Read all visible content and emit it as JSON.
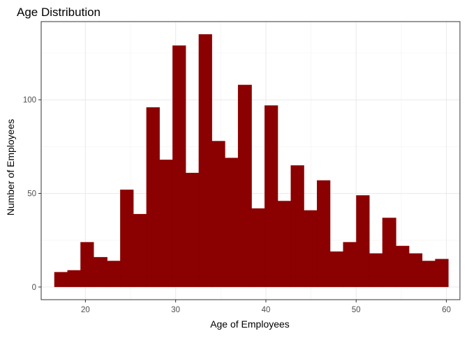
{
  "chart_data": {
    "type": "bar",
    "title": "Age Distribution",
    "xlabel": "Age of Employees",
    "ylabel": "Number of Employees",
    "xlim": [
      15.1,
      61.5
    ],
    "ylim": [
      -6.75,
      141.75
    ],
    "x_ticks": [
      20,
      30,
      40,
      50,
      60
    ],
    "y_ticks": [
      0,
      50,
      100
    ],
    "grid": true,
    "legend": "none",
    "bar_color": "#8B0000",
    "bins": [
      {
        "x0": 16.55,
        "x1": 18.0,
        "count": 8
      },
      {
        "x0": 18.0,
        "x1": 19.45,
        "count": 9
      },
      {
        "x0": 19.45,
        "x1": 20.9,
        "count": 24
      },
      {
        "x0": 20.9,
        "x1": 22.4,
        "count": 16
      },
      {
        "x0": 22.4,
        "x1": 23.85,
        "count": 14
      },
      {
        "x0": 23.85,
        "x1": 25.3,
        "count": 52
      },
      {
        "x0": 25.3,
        "x1": 26.75,
        "count": 39
      },
      {
        "x0": 26.75,
        "x1": 28.2,
        "count": 96
      },
      {
        "x0": 28.2,
        "x1": 29.65,
        "count": 68
      },
      {
        "x0": 29.65,
        "x1": 31.1,
        "count": 129
      },
      {
        "x0": 31.1,
        "x1": 32.55,
        "count": 61
      },
      {
        "x0": 32.55,
        "x1": 34.0,
        "count": 135
      },
      {
        "x0": 34.0,
        "x1": 35.45,
        "count": 78
      },
      {
        "x0": 35.45,
        "x1": 36.9,
        "count": 69
      },
      {
        "x0": 36.9,
        "x1": 38.4,
        "count": 108
      },
      {
        "x0": 38.4,
        "x1": 39.85,
        "count": 42
      },
      {
        "x0": 39.85,
        "x1": 41.3,
        "count": 97
      },
      {
        "x0": 41.3,
        "x1": 42.75,
        "count": 46
      },
      {
        "x0": 42.75,
        "x1": 44.2,
        "count": 65
      },
      {
        "x0": 44.2,
        "x1": 45.65,
        "count": 41
      },
      {
        "x0": 45.65,
        "x1": 47.1,
        "count": 57
      },
      {
        "x0": 47.1,
        "x1": 48.55,
        "count": 19
      },
      {
        "x0": 48.55,
        "x1": 50.0,
        "count": 24
      },
      {
        "x0": 50.0,
        "x1": 51.45,
        "count": 49
      },
      {
        "x0": 51.45,
        "x1": 52.9,
        "count": 18
      },
      {
        "x0": 52.9,
        "x1": 54.4,
        "count": 37
      },
      {
        "x0": 54.4,
        "x1": 55.85,
        "count": 22
      },
      {
        "x0": 55.85,
        "x1": 57.3,
        "count": 18
      },
      {
        "x0": 57.3,
        "x1": 58.75,
        "count": 14
      },
      {
        "x0": 58.75,
        "x1": 60.2,
        "count": 15
      }
    ]
  }
}
